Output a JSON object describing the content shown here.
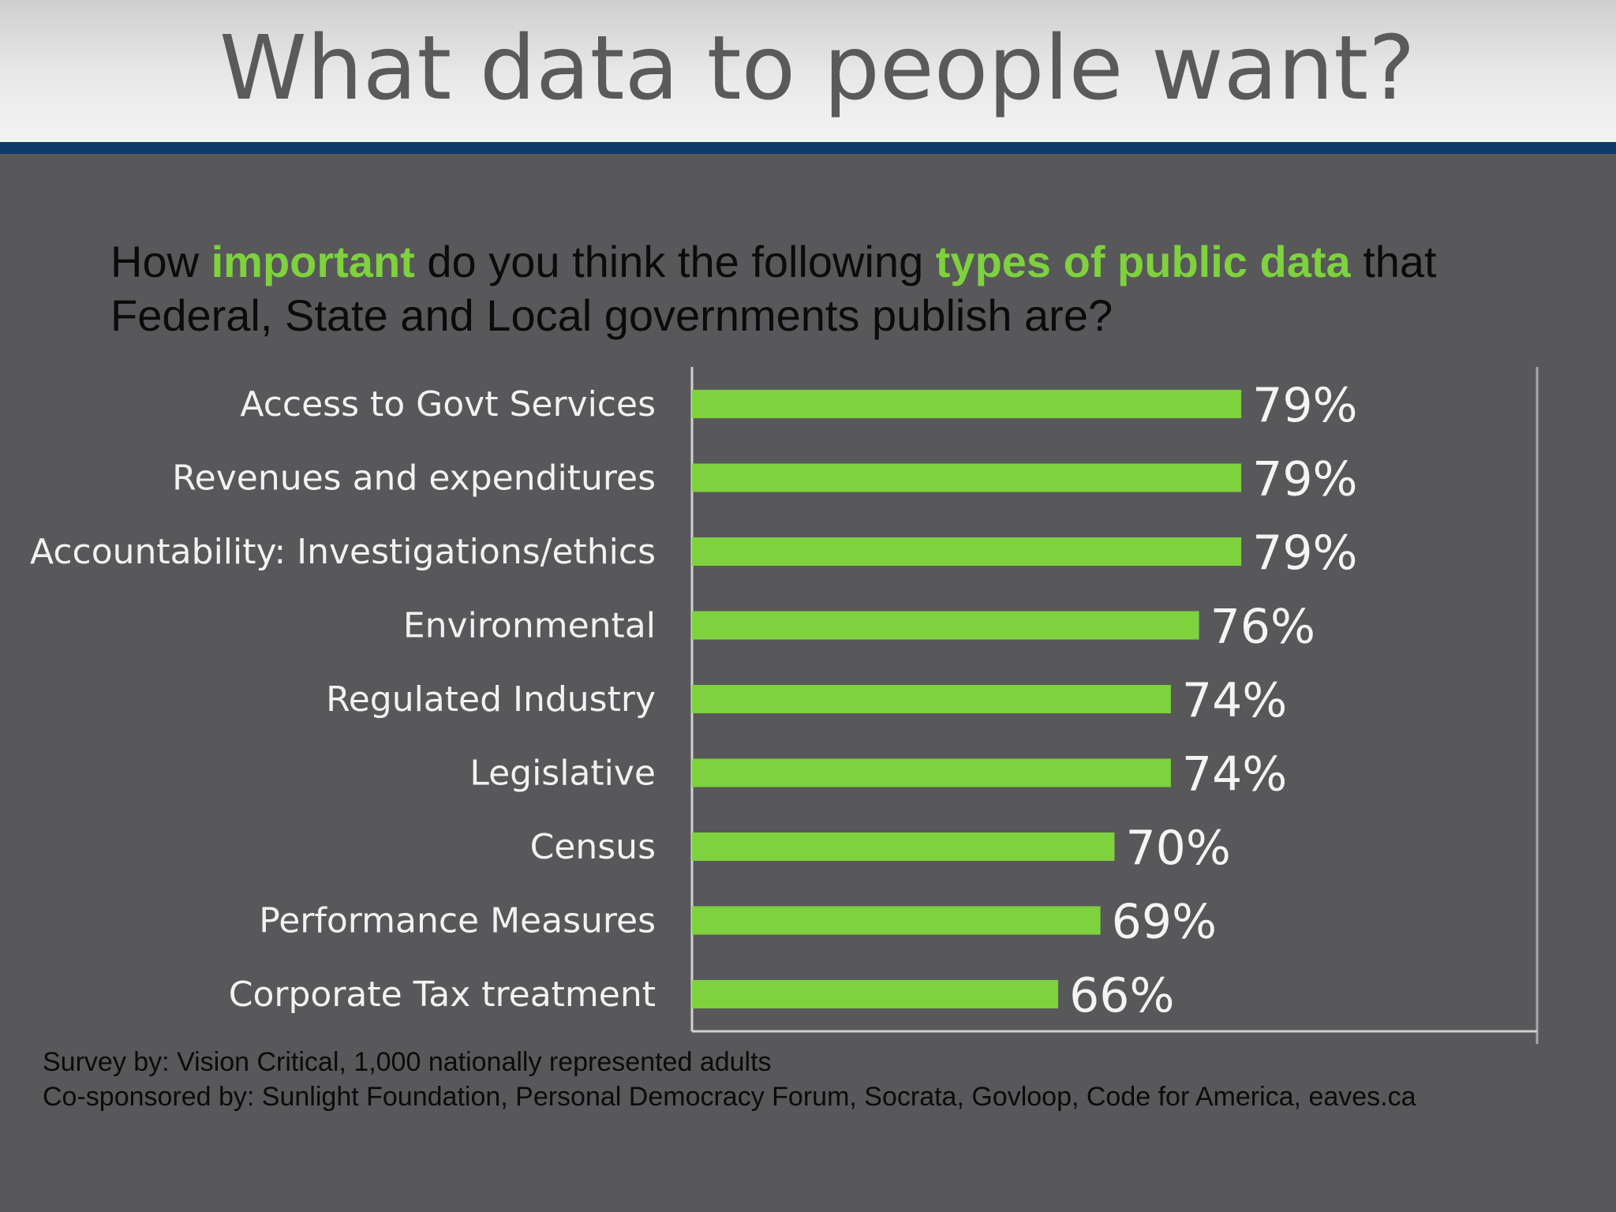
{
  "header": {
    "title": "What data to people want?"
  },
  "question": {
    "parts": [
      "How ",
      "important",
      " do you think the following ",
      "types of public data",
      " that Federal, State and Local governments publish are?"
    ]
  },
  "colors": {
    "bar": "#7ed23d",
    "highlight": "#7ed23d",
    "background": "#58575a",
    "header_rule": "#0e3a66"
  },
  "chart_data": {
    "type": "bar",
    "orientation": "horizontal",
    "categories": [
      "Access to Govt Services",
      "Revenues and expenditures",
      "Accountability: Investigations/ethics",
      "Environmental",
      "Regulated Industry",
      "Legislative",
      "Census",
      "Performance Measures",
      "Corporate Tax treatment"
    ],
    "values": [
      79,
      79,
      79,
      76,
      74,
      74,
      70,
      69,
      66
    ],
    "value_labels": [
      "79%",
      "79%",
      "79%",
      "76%",
      "74%",
      "74%",
      "70%",
      "69%",
      "66%"
    ],
    "title": "",
    "xlabel": "",
    "ylabel": "",
    "xlim": [
      40,
      100
    ],
    "grid": false,
    "legend": "none"
  },
  "footer": {
    "line1": "Survey by: Vision Critical, 1,000 nationally represented adults",
    "line2": "Co-sponsored by: Sunlight Foundation, Personal Democracy Forum, Socrata, Govloop, Code for America, eaves.ca"
  }
}
